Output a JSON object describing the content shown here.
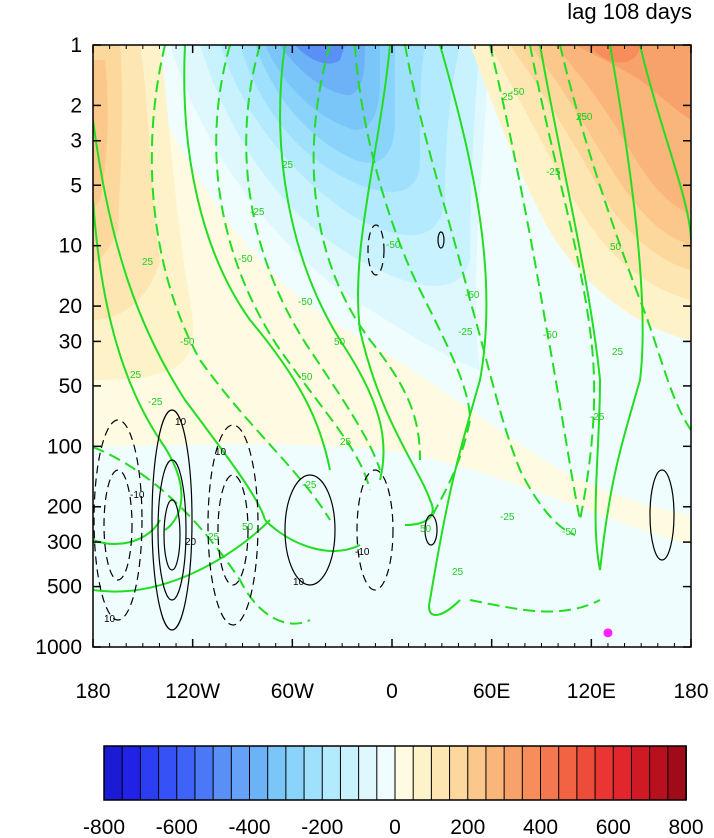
{
  "chart_data": {
    "type": "heatmap",
    "title": "lag 108 days",
    "xlabel": "",
    "ylabel": "",
    "x_ticks": [
      {
        "value": -180,
        "label": "180"
      },
      {
        "value": -120,
        "label": "120W"
      },
      {
        "value": -60,
        "label": "60W"
      },
      {
        "value": 0,
        "label": "0"
      },
      {
        "value": 60,
        "label": "60E"
      },
      {
        "value": 120,
        "label": "120E"
      },
      {
        "value": 180,
        "label": "180"
      }
    ],
    "xlim": [
      -180,
      180
    ],
    "y_scale": "log",
    "y_reversed": true,
    "ylim": [
      1000,
      1
    ],
    "y_ticks": [
      {
        "value": 1,
        "label": "1"
      },
      {
        "value": 2,
        "label": "2"
      },
      {
        "value": 3,
        "label": "3"
      },
      {
        "value": 5,
        "label": "5"
      },
      {
        "value": 10,
        "label": "10"
      },
      {
        "value": 20,
        "label": "20"
      },
      {
        "value": 30,
        "label": "30"
      },
      {
        "value": 50,
        "label": "50"
      },
      {
        "value": 100,
        "label": "100"
      },
      {
        "value": 200,
        "label": "200"
      },
      {
        "value": 300,
        "label": "300"
      },
      {
        "value": 500,
        "label": "500"
      },
      {
        "value": 1000,
        "label": "1000"
      }
    ],
    "colorbar": {
      "levels": [
        -800,
        -750,
        -700,
        -650,
        -600,
        -550,
        -500,
        -450,
        -400,
        -350,
        -300,
        -250,
        -200,
        -150,
        -100,
        -50,
        0,
        50,
        100,
        150,
        200,
        250,
        300,
        350,
        400,
        450,
        500,
        550,
        600,
        650,
        700,
        750,
        800
      ],
      "labels": [
        {
          "value": -800,
          "label": "-800"
        },
        {
          "value": -600,
          "label": "-600"
        },
        {
          "value": -400,
          "label": "-400"
        },
        {
          "value": -200,
          "label": "-200"
        },
        {
          "value": 0,
          "label": "0"
        },
        {
          "value": 200,
          "label": "200"
        },
        {
          "value": 400,
          "label": "400"
        },
        {
          "value": 600,
          "label": "600"
        },
        {
          "value": 800,
          "label": "800"
        }
      ],
      "colors": [
        "#1b1bd6",
        "#2222e6",
        "#2b3ef2",
        "#3652f7",
        "#3f63f8",
        "#4a78f6",
        "#5a8ff6",
        "#65a2f7",
        "#6cb2f7",
        "#7bc6f9",
        "#8ad4fb",
        "#9fe0fc",
        "#b3eafd",
        "#c8f2fe",
        "#def8fe",
        "#f0fdff",
        "#fffbe2",
        "#fef2c9",
        "#fde6b2",
        "#fcd89c",
        "#fbc78a",
        "#f9b57a",
        "#f7a26a",
        "#f68d5b",
        "#f4784f",
        "#f26344",
        "#ee4c3a",
        "#ea3633",
        "#e1262d",
        "#cf1a25",
        "#b9101f",
        "#a00b1a"
      ]
    },
    "shaded_field_description_levels": {
      "blue_core_stratosphere_60W_to_0": -450,
      "orange_core_stratosphere_120E": 450,
      "orange_core_stratosphere_160W": 250
    },
    "contours": {
      "green_solid_labels": [
        "25",
        "50"
      ],
      "green_dashed_labels": [
        "-25",
        "-50"
      ],
      "black_labels": [
        "10",
        "20",
        "-10"
      ]
    },
    "marker": {
      "lon": 130,
      "p": 850,
      "color": "#ff22ff"
    },
    "grid": false,
    "legend": "colorbar-bottom"
  },
  "visible_text": {
    "title": "lag 108 days",
    "clabels_green": {
      "a": "25",
      "b": "25",
      "c": "-25",
      "d": "-50",
      "e": "25",
      "f": "50",
      "g": "-25",
      "h": "-50",
      "i": "25",
      "j": "-50",
      "k": "-50",
      "l": "50",
      "m": "25",
      "n": "-25",
      "o": "-50",
      "p": "50",
      "q": "-25",
      "r": "25",
      "s": "-50",
      "t": "25",
      "u": "-25",
      "v": "-50",
      "w": "-50",
      "x": "-50",
      "y": "50",
      "z": "-25",
      "aa": "-25",
      "ab": "25",
      "ac": "-50",
      "ad": "25"
    },
    "clabels_black": {
      "a": "10",
      "b": "10",
      "c": "20",
      "d": "-10",
      "e": "10",
      "f": "-10",
      "g": "10"
    }
  }
}
